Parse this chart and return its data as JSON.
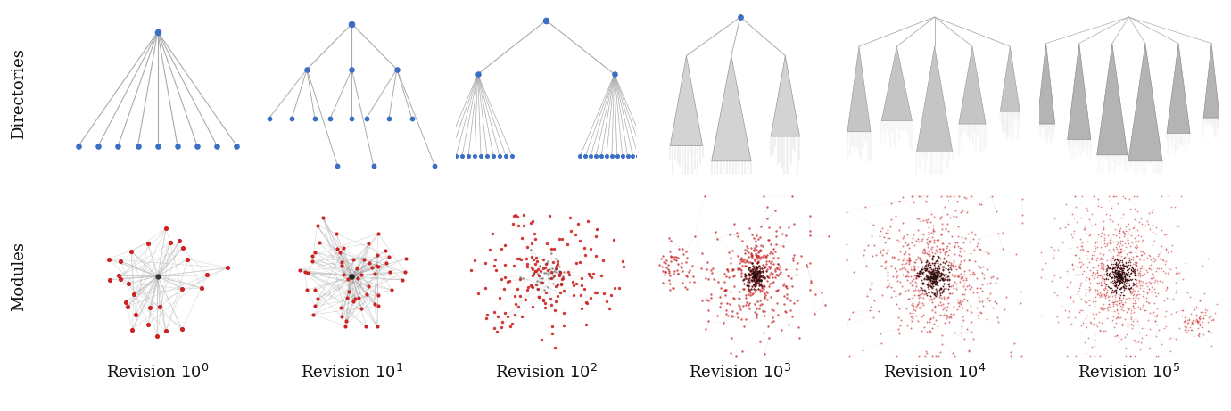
{
  "title": "",
  "row_labels": [
    "Directories",
    "Modules"
  ],
  "col_exponents": [
    0,
    1,
    2,
    3,
    4,
    5
  ],
  "background_color": "#ffffff",
  "label_fontsize": 13,
  "xlabel_fontsize": 13,
  "tree_node_color": "#3a6fc4",
  "network_node_color": "#cc2222",
  "network_edge_color": "#888888",
  "tree_edge_color": "#aaaaaa",
  "fig_width": 13.8,
  "fig_height": 4.61,
  "dpi": 100
}
